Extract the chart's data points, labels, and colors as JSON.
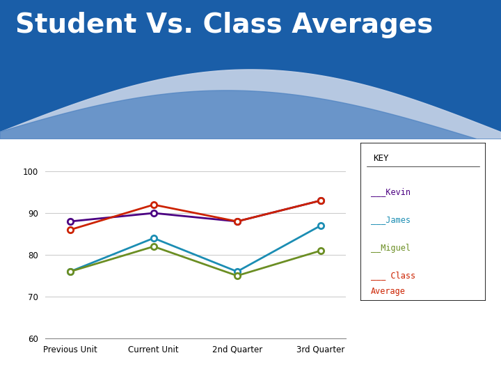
{
  "title": "Student Vs. Class Averages",
  "categories": [
    "Previous Unit",
    "Current Unit",
    "2nd Quarter",
    "3rd Quarter"
  ],
  "kevin": [
    88,
    90,
    88,
    93
  ],
  "james": [
    76,
    84,
    76,
    87
  ],
  "miguel": [
    76,
    82,
    75,
    81
  ],
  "class_avg": [
    86,
    92,
    88,
    93
  ],
  "kevin_color": "#4B0082",
  "james_color": "#1B8DB3",
  "miguel_color": "#6B8E23",
  "class_avg_color": "#CC2200",
  "ylim": [
    60,
    105
  ],
  "yticks": [
    60,
    70,
    80,
    90,
    100
  ],
  "bg_top_color": "#1A5EA8",
  "title_color": "#FFFFFF",
  "title_fontsize": 28,
  "key_title": "KEY"
}
